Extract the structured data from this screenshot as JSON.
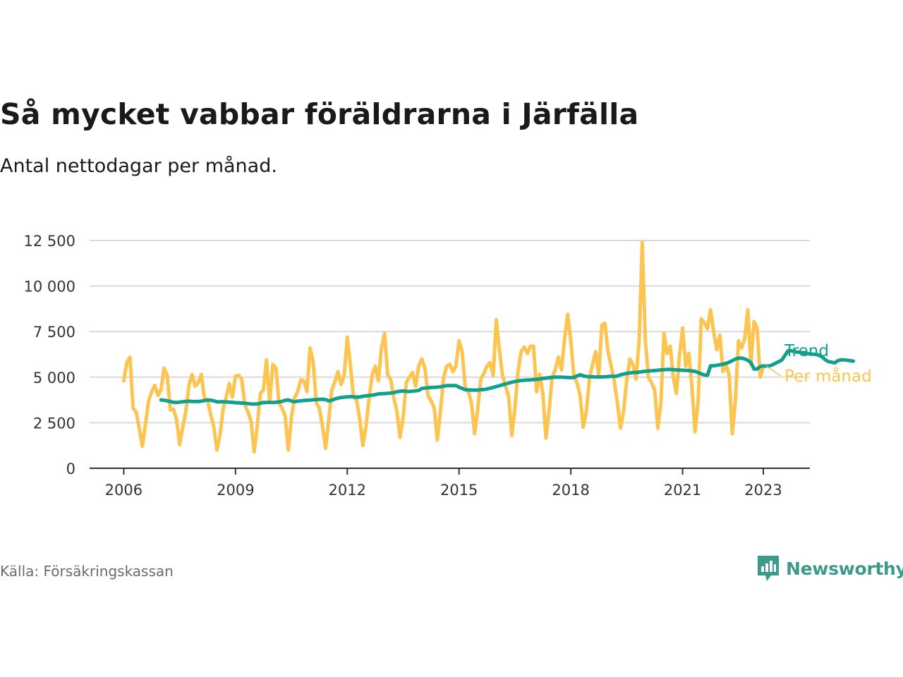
{
  "title": "Så mycket vabbar föräldrarna i Järfälla",
  "subtitle": "Antal nettodagar per månad.",
  "source": "Källa: Försäkringskassan",
  "logo": {
    "text": "Newsworthy",
    "icon": "newsworthy-chart-bubble-icon"
  },
  "colors": {
    "monthly": "#fcc451",
    "trend": "#12a08c",
    "grid": "#d9d9d9",
    "axis": "#333333"
  },
  "chart_data": {
    "type": "line",
    "title": "Så mycket vabbar föräldrarna i Järfälla",
    "subtitle": "Antal nettodagar per månad.",
    "xlabel": "",
    "ylabel": "",
    "ylim": [
      0,
      12500
    ],
    "xlim": [
      "2005-02",
      "2024-06"
    ],
    "grid": true,
    "y_ticks": [
      {
        "value": 0,
        "label": "0"
      },
      {
        "value": 2500,
        "label": "2 500"
      },
      {
        "value": 5000,
        "label": "5 000"
      },
      {
        "value": 7500,
        "label": "7 500"
      },
      {
        "value": 10000,
        "label": "10 000"
      },
      {
        "value": 12500,
        "label": "12 500"
      }
    ],
    "x_ticks": [
      {
        "date": "2006-01",
        "label": "2006"
      },
      {
        "date": "2009-01",
        "label": "2009"
      },
      {
        "date": "2012-01",
        "label": "2012"
      },
      {
        "date": "2015-01",
        "label": "2015"
      },
      {
        "date": "2018-01",
        "label": "2018"
      },
      {
        "date": "2021-01",
        "label": "2021"
      },
      {
        "date": "2023-03",
        "label": "2023"
      }
    ],
    "series": [
      {
        "name": "Per månad",
        "start": "2006-01",
        "frequency": "monthly",
        "values": [
          4800,
          5800,
          6100,
          3300,
          3100,
          2200,
          1200,
          2400,
          3700,
          4200,
          4550,
          4000,
          4300,
          5500,
          5100,
          3200,
          3250,
          2700,
          1300,
          2250,
          3100,
          4550,
          5150,
          4500,
          4700,
          5150,
          3850,
          3750,
          2950,
          2300,
          1000,
          1800,
          3250,
          3900,
          4650,
          3900,
          5050,
          5100,
          4900,
          3500,
          3100,
          2600,
          900,
          2300,
          4100,
          4300,
          5950,
          3600,
          5700,
          5500,
          3600,
          3300,
          2850,
          1000,
          2800,
          3850,
          4200,
          4850,
          4800,
          4200,
          6600,
          5850,
          3600,
          3300,
          2300,
          1100,
          2600,
          4300,
          4750,
          5300,
          4600,
          5100,
          7200,
          5650,
          3900,
          3750,
          2700,
          1250,
          2300,
          3800,
          5100,
          5600,
          4800,
          6600,
          7400,
          5150,
          4850,
          3850,
          3100,
          1700,
          2800,
          4700,
          5000,
          5250,
          4500,
          5600,
          6000,
          5500,
          4000,
          3700,
          3300,
          1550,
          3100,
          4950,
          5600,
          5700,
          5300,
          5600,
          7000,
          6400,
          4450,
          4200,
          3600,
          1900,
          3200,
          4900,
          5200,
          5600,
          5800,
          5100,
          8150,
          6500,
          5100,
          4500,
          3900,
          1800,
          3300,
          5300,
          6400,
          6650,
          6300,
          6700,
          6700,
          4200,
          5150,
          4100,
          1650,
          3150,
          5000,
          5400,
          6100,
          5400,
          7100,
          8450,
          7000,
          5050,
          4700,
          4000,
          2250,
          3100,
          4900,
          5700,
          6400,
          5100,
          7850,
          7950,
          6400,
          5600,
          4800,
          3600,
          2200,
          3100,
          4800,
          6000,
          5700,
          4900,
          7050,
          12400,
          7000,
          4950,
          4700,
          4300,
          2200,
          3600,
          7400,
          6300,
          6700,
          5000,
          4100,
          6200,
          7700,
          5600,
          6300,
          4500,
          2000,
          3650,
          8200,
          8000,
          7650,
          8700,
          7500,
          6500,
          7300,
          5300,
          5700,
          5100,
          1900,
          3700,
          7000,
          6600,
          7100,
          8700,
          5700,
          8050,
          7700,
          5000,
          5600
        ]
      },
      {
        "name": "Trend",
        "start": "2007-01",
        "frequency": "monthly",
        "values": [
          3750,
          3730,
          3700,
          3660,
          3620,
          3610,
          3630,
          3650,
          3670,
          3680,
          3670,
          3660,
          3660,
          3680,
          3720,
          3740,
          3740,
          3700,
          3640,
          3650,
          3650,
          3640,
          3630,
          3620,
          3600,
          3590,
          3580,
          3570,
          3550,
          3530,
          3520,
          3530,
          3570,
          3610,
          3610,
          3620,
          3610,
          3620,
          3640,
          3670,
          3730,
          3750,
          3690,
          3650,
          3680,
          3700,
          3720,
          3730,
          3740,
          3760,
          3770,
          3780,
          3790,
          3770,
          3700,
          3740,
          3800,
          3850,
          3880,
          3900,
          3920,
          3930,
          3920,
          3910,
          3910,
          3950,
          3970,
          3990,
          4010,
          4040,
          4080,
          4090,
          4100,
          4110,
          4130,
          4150,
          4200,
          4230,
          4240,
          4220,
          4210,
          4230,
          4250,
          4270,
          4380,
          4400,
          4420,
          4430,
          4440,
          4450,
          4470,
          4500,
          4530,
          4540,
          4540,
          4540,
          4450,
          4380,
          4310,
          4300,
          4290,
          4290,
          4290,
          4310,
          4320,
          4350,
          4390,
          4440,
          4480,
          4530,
          4580,
          4630,
          4680,
          4720,
          4760,
          4790,
          4810,
          4830,
          4840,
          4850,
          4870,
          4880,
          4900,
          4930,
          4950,
          4970,
          4990,
          5000,
          5000,
          5000,
          4990,
          4980,
          4970,
          4990,
          5060,
          5130,
          5070,
          5040,
          5020,
          5020,
          5010,
          5010,
          5010,
          5020,
          5030,
          5050,
          5040,
          5060,
          5130,
          5170,
          5210,
          5230,
          5250,
          5260,
          5280,
          5300,
          5320,
          5340,
          5350,
          5360,
          5380,
          5400,
          5410,
          5420,
          5420,
          5410,
          5400,
          5390,
          5380,
          5370,
          5360,
          5340,
          5320,
          5250,
          5180,
          5120,
          5100,
          5620,
          5620,
          5650,
          5680,
          5710,
          5760,
          5820,
          5900,
          6000,
          6040,
          6050,
          6000,
          5920,
          5800,
          5450,
          5450,
          5580,
          5620,
          5600,
          5620,
          5680,
          5770,
          5850,
          5950,
          6200,
          6450,
          6450,
          6400,
          6370,
          6350,
          6320,
          6300,
          6280,
          6260,
          6250,
          6200,
          6100,
          5950,
          5850,
          5820,
          5780,
          5900,
          5950,
          5950,
          5930,
          5900,
          5880
        ]
      }
    ],
    "legend": {
      "placement": "end-of-line",
      "entries": [
        {
          "name": "Trend"
        },
        {
          "name": "Per månad"
        }
      ]
    }
  }
}
